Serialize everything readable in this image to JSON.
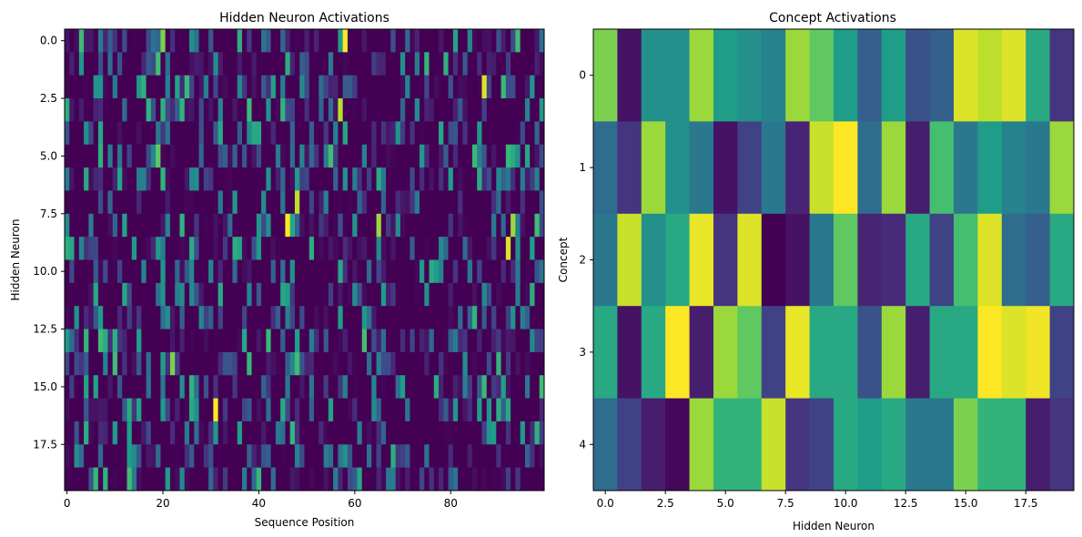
{
  "chart_data": [
    {
      "type": "heatmap",
      "title": "Hidden Neuron Activations",
      "xlabel": "Sequence Position",
      "ylabel": "Hidden Neuron",
      "rows": 20,
      "cols": 100,
      "x_ticks": [
        "0",
        "20",
        "40",
        "60",
        "80"
      ],
      "x_tick_values": [
        0,
        20,
        40,
        60,
        80
      ],
      "y_ticks": [
        "0.0",
        "2.5",
        "5.0",
        "7.5",
        "10.0",
        "12.5",
        "15.0",
        "17.5"
      ],
      "y_tick_values": [
        0,
        2.5,
        5,
        7.5,
        10,
        12.5,
        15,
        17.5
      ],
      "colormap": "viridis",
      "values": "sparse random activations in [0,1] (mostly low, occasional bright spikes); 20 neurons × 100 positions",
      "highlights": [
        {
          "row": 0,
          "col": 58,
          "value": 1.0
        },
        {
          "row": 2,
          "col": 87,
          "value": 0.95
        },
        {
          "row": 3,
          "col": 57,
          "value": 0.9
        },
        {
          "row": 7,
          "col": 48,
          "value": 0.9
        },
        {
          "row": 8,
          "col": 46,
          "value": 1.0
        },
        {
          "row": 8,
          "col": 65,
          "value": 0.85
        },
        {
          "row": 8,
          "col": 93,
          "value": 0.85
        },
        {
          "row": 9,
          "col": 92,
          "value": 0.95
        },
        {
          "row": 16,
          "col": 31,
          "value": 1.0
        },
        {
          "row": 14,
          "col": 22,
          "value": 0.8
        },
        {
          "row": 0,
          "col": 20,
          "value": 0.8
        },
        {
          "row": 5,
          "col": 19,
          "value": 0.75
        }
      ]
    },
    {
      "type": "heatmap",
      "title": "Concept Activations",
      "xlabel": "Hidden Neuron",
      "ylabel": "Concept",
      "x_ticks": [
        "0.0",
        "2.5",
        "5.0",
        "7.5",
        "10.0",
        "12.5",
        "15.0",
        "17.5"
      ],
      "x_tick_values": [
        0,
        2.5,
        5,
        7.5,
        10,
        12.5,
        15,
        17.5
      ],
      "y_ticks": [
        "0",
        "1",
        "2",
        "3",
        "4"
      ],
      "y_tick_values": [
        0,
        1,
        2,
        3,
        4
      ],
      "colormap": "viridis",
      "values": [
        [
          0.8,
          0.05,
          0.5,
          0.5,
          0.85,
          0.55,
          0.5,
          0.45,
          0.85,
          0.75,
          0.55,
          0.3,
          0.55,
          0.25,
          0.3,
          0.95,
          0.9,
          0.95,
          0.6,
          0.15
        ],
        [
          0.35,
          0.15,
          0.85,
          0.5,
          0.4,
          0.05,
          0.2,
          0.4,
          0.1,
          0.92,
          1.0,
          0.35,
          0.85,
          0.08,
          0.7,
          0.4,
          0.55,
          0.45,
          0.4,
          0.85
        ],
        [
          0.4,
          0.92,
          0.5,
          0.6,
          0.97,
          0.15,
          0.95,
          0.0,
          0.05,
          0.4,
          0.75,
          0.1,
          0.12,
          0.6,
          0.2,
          0.7,
          0.95,
          0.35,
          0.3,
          0.6
        ],
        [
          0.6,
          0.05,
          0.6,
          1.0,
          0.08,
          0.85,
          0.75,
          0.2,
          0.97,
          0.6,
          0.6,
          0.25,
          0.85,
          0.08,
          0.6,
          0.6,
          1.0,
          0.95,
          0.98,
          0.2
        ],
        [
          0.35,
          0.2,
          0.08,
          0.02,
          0.85,
          0.65,
          0.65,
          0.92,
          0.15,
          0.2,
          0.6,
          0.55,
          0.6,
          0.4,
          0.4,
          0.8,
          0.65,
          0.65,
          0.08,
          0.15
        ]
      ]
    }
  ]
}
